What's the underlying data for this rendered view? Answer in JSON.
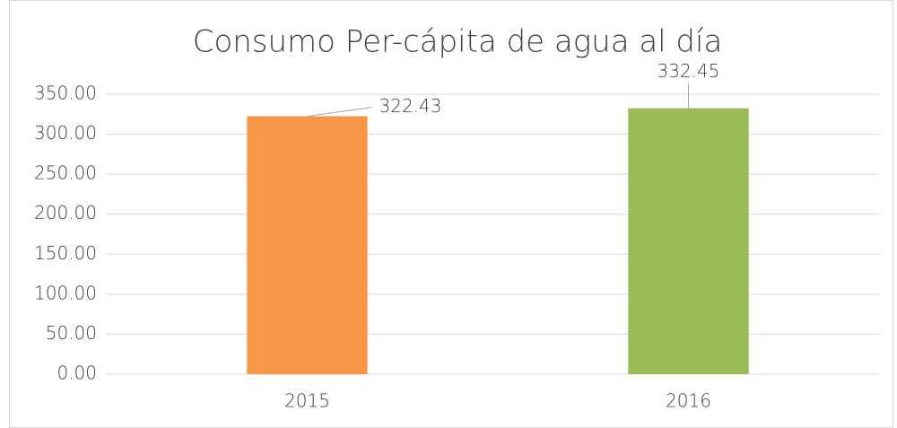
{
  "chart_data": {
    "type": "bar",
    "title": "Consumo Per-cápita de agua al día",
    "categories": [
      "2015",
      "2016"
    ],
    "values": [
      322.43,
      332.45
    ],
    "colors": [
      "#f79646",
      "#9bbb59"
    ],
    "ylim": [
      0,
      350
    ],
    "yticks": [
      {
        "value": 0,
        "label": "0.00"
      },
      {
        "value": 50,
        "label": "50.00"
      },
      {
        "value": 100,
        "label": "100.00"
      },
      {
        "value": 150,
        "label": "150.00"
      },
      {
        "value": 200,
        "label": "200.00"
      },
      {
        "value": 250,
        "label": "250.00"
      },
      {
        "value": 300,
        "label": "300.00"
      },
      {
        "value": 350,
        "label": "350.00"
      }
    ],
    "grid": true
  }
}
